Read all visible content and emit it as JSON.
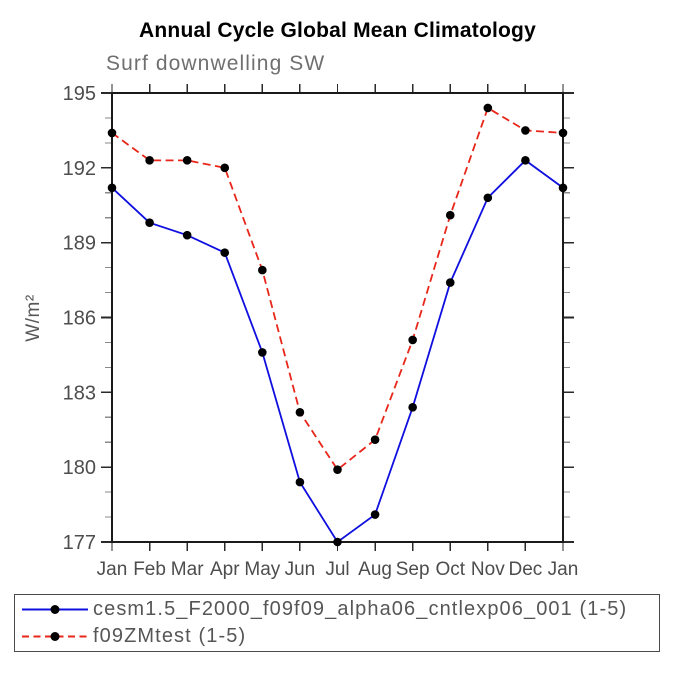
{
  "chart_data": {
    "type": "line",
    "title": "Annual Cycle Global Mean Climatology",
    "subtitle": "Surf downwelling SW",
    "ylabel": "W/m²",
    "xlabel": "",
    "x_categories": [
      "Jan",
      "Feb",
      "Mar",
      "Apr",
      "May",
      "Jun",
      "Jul",
      "Aug",
      "Sep",
      "Oct",
      "Nov",
      "Dec",
      "Jan"
    ],
    "ylim": [
      177,
      195
    ],
    "ytick_major": [
      177,
      180,
      183,
      186,
      189,
      192,
      195
    ],
    "ytick_minor_step": 1,
    "grid": false,
    "frame": "box-with-outward-ticks",
    "legend_position": "bottom-left-box",
    "axis_text_color": "#4d4d4d",
    "series": [
      {
        "name": "cesm1.5_F2000_f09f09_alpha06_cntlexp06_001 (1-5)",
        "color": "#0f0fe0",
        "style": "solid",
        "marker": "filled-circle",
        "marker_color": "#000000",
        "values": [
          191.2,
          189.8,
          189.3,
          188.6,
          184.6,
          179.4,
          177.0,
          178.1,
          182.4,
          187.4,
          190.8,
          192.3,
          191.2
        ]
      },
      {
        "name": "f09ZMtest (1-5)",
        "color": "#e8261a",
        "style": "dashed",
        "marker": "filled-circle",
        "marker_color": "#000000",
        "values": [
          193.4,
          192.3,
          192.3,
          192.0,
          187.9,
          182.2,
          179.9,
          181.1,
          185.1,
          190.1,
          194.4,
          193.5,
          193.4
        ]
      }
    ]
  }
}
